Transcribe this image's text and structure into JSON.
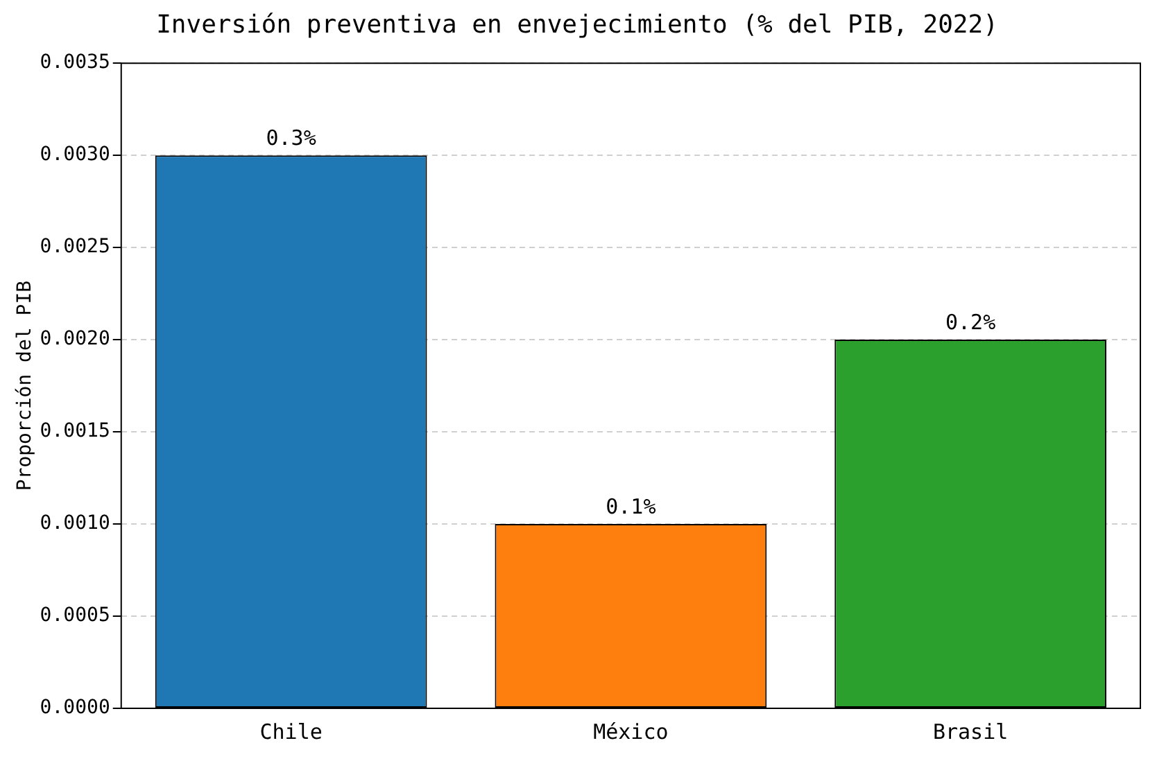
{
  "chart_data": {
    "type": "bar",
    "title": "Inversión preventiva en envejecimiento (% del PIB, 2022)",
    "ylabel": "Proporción del PIB",
    "categories": [
      "Chile",
      "México",
      "Brasil"
    ],
    "values": [
      0.003,
      0.001,
      0.002
    ],
    "value_labels": [
      "0.3%",
      "0.1%",
      "0.2%"
    ],
    "colors": [
      "#1f77b4",
      "#ff7f0e",
      "#2ca02c"
    ],
    "ylim": [
      0,
      0.0035
    ],
    "yticks": [
      "0.0000",
      "0.0005",
      "0.0010",
      "0.0015",
      "0.0020",
      "0.0025",
      "0.0030",
      "0.0035"
    ],
    "grid": "y"
  }
}
